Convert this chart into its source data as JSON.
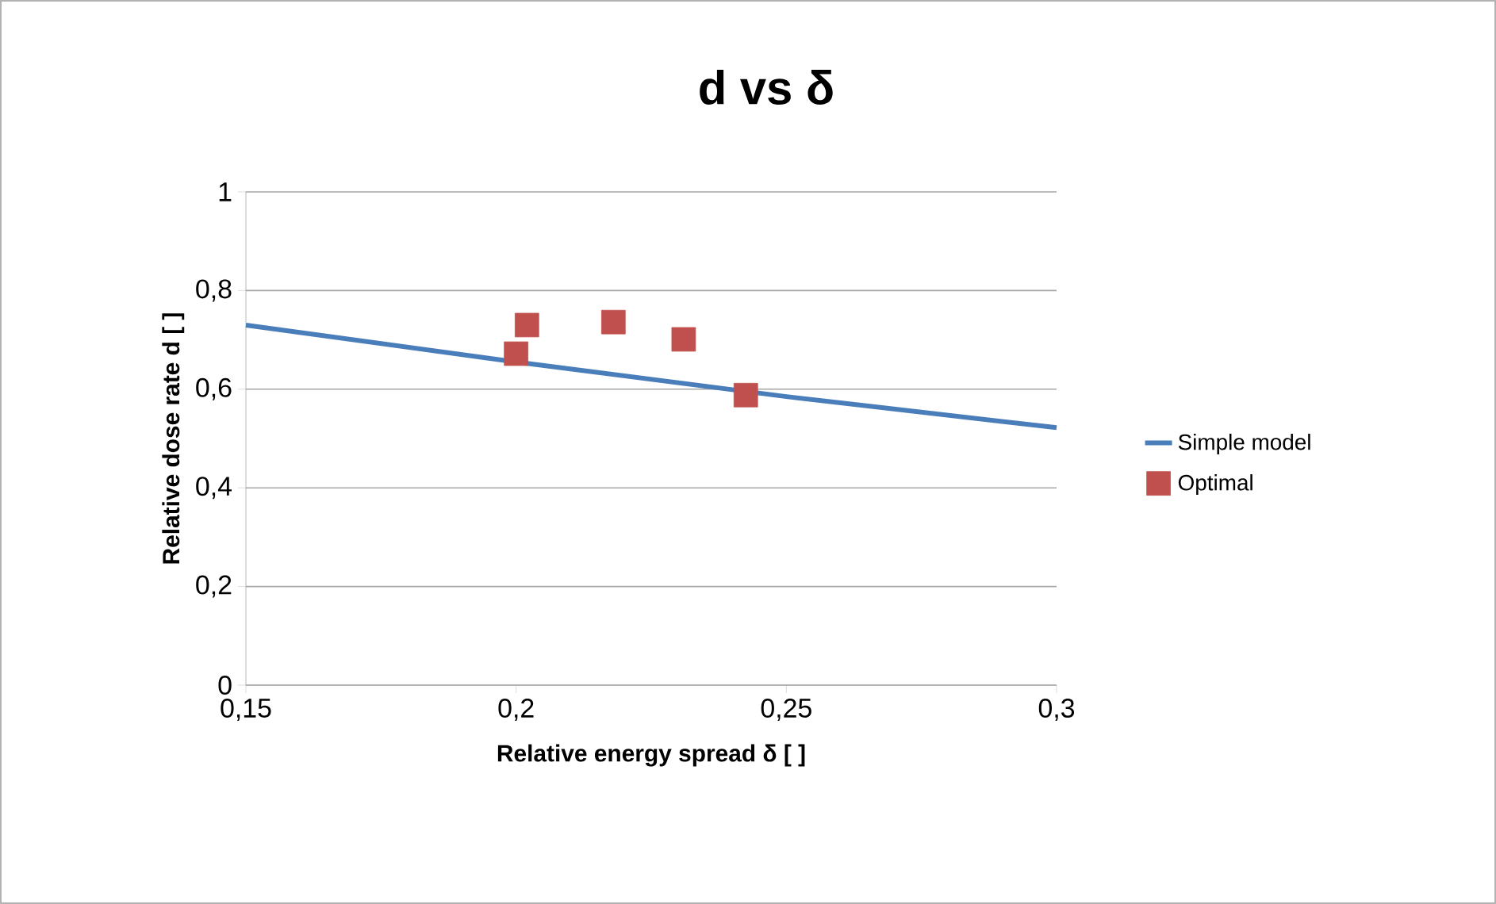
{
  "chart_data": {
    "type": "line",
    "title": "d vs δ",
    "xlabel": "Relative energy spread δ [ ]",
    "ylabel": "Relative dose rate d [ ]",
    "xlim": [
      0.15,
      0.3
    ],
    "ylim": [
      0,
      1
    ],
    "xticks": [
      {
        "value": 0.15,
        "label": "0,15"
      },
      {
        "value": 0.2,
        "label": "0,2"
      },
      {
        "value": 0.25,
        "label": "0,25"
      },
      {
        "value": 0.3,
        "label": "0,3"
      }
    ],
    "yticks": [
      0,
      {
        "value": 0.2,
        "label": "0,2"
      },
      {
        "value": 0.4,
        "label": "0,4"
      },
      {
        "value": 0.6,
        "label": "0,6"
      },
      {
        "value": 0.8,
        "label": "0,8"
      },
      1
    ],
    "grid": "y",
    "legend": "right",
    "series": [
      {
        "name": "Simple model",
        "color": "#4a7ebb",
        "x": [
          0.15,
          0.2,
          0.25,
          0.3
        ],
        "values": [
          0.73,
          0.655,
          0.585,
          0.522
        ],
        "marker": "none"
      },
      {
        "name": "Optimal",
        "type": "scatter",
        "color": "#c0504d",
        "x": [
          0.2,
          0.202,
          0.218,
          0.231,
          0.2425
        ],
        "values": [
          0.672,
          0.73,
          0.736,
          0.701,
          0.588
        ],
        "marker": "square"
      }
    ]
  }
}
